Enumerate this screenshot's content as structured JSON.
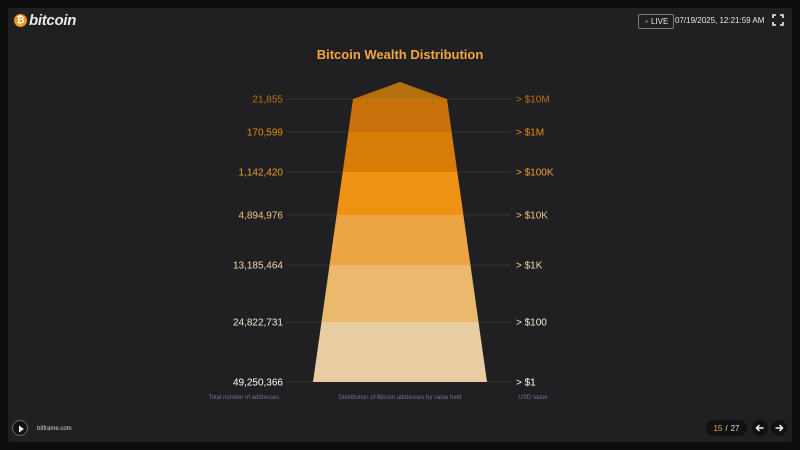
{
  "header": {
    "brand_symbol": "₿",
    "brand_name": "bitcoin",
    "live_label": "LIVE",
    "datetime": "07/19/2025, 12:21:59 AM",
    "fullscreen_icon": "expand-icon"
  },
  "chart_data": {
    "type": "pyramid",
    "title": "Bitcoin Wealth Distribution",
    "left_axis_label": "Total number of addresses",
    "center_axis_label": "Distribution of Bitcoin addresses by value held",
    "right_axis_label": "USD Value",
    "tiers": [
      {
        "usd_value": "> $10M",
        "addresses": "21,855",
        "color": "#c8710a",
        "label_color": "#b7700f"
      },
      {
        "usd_value": "> $1M",
        "addresses": "170,599",
        "color": "#d77c07",
        "label_color": "#e8900c"
      },
      {
        "usd_value": "> $100K",
        "addresses": "1,142,420",
        "color": "#ee9213",
        "label_color": "#f0a030"
      },
      {
        "usd_value": "> $10K",
        "addresses": "4,894,976",
        "color": "#eba544",
        "label_color": "#f3c27a"
      },
      {
        "usd_value": "> $1K",
        "addresses": "13,185,464",
        "color": "#eab96e",
        "label_color": "#f4dab0"
      },
      {
        "usd_value": "> $100",
        "addresses": "24,822,731",
        "color": "#e9cda2",
        "label_color": "#f3e8d8"
      },
      {
        "usd_value": "> $1",
        "addresses": "49,250,366",
        "color": "#e9ddcf",
        "label_color": "#ffffff"
      }
    ],
    "apex_color": "#b66f0f"
  },
  "footer": {
    "play_icon": "play-icon",
    "site": "bitframe.com",
    "page_current": "15",
    "page_separator": "/",
    "page_total": "27",
    "prev_icon": "arrow-left-icon",
    "next_icon": "arrow-right-icon"
  }
}
